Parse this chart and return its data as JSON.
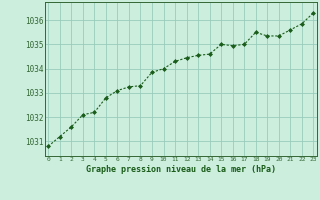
{
  "x": [
    0,
    1,
    2,
    3,
    4,
    5,
    6,
    7,
    8,
    9,
    10,
    11,
    12,
    13,
    14,
    15,
    16,
    17,
    18,
    19,
    20,
    21,
    22,
    23
  ],
  "y": [
    1030.8,
    1031.2,
    1031.6,
    1032.1,
    1032.2,
    1032.8,
    1033.1,
    1033.25,
    1033.3,
    1033.85,
    1034.0,
    1034.3,
    1034.45,
    1034.55,
    1034.6,
    1035.0,
    1034.95,
    1035.0,
    1035.5,
    1035.35,
    1035.35,
    1035.6,
    1035.85,
    1036.3
  ],
  "line_color": "#1a5c1a",
  "marker_color": "#1a5c1a",
  "bg_color": "#cceedd",
  "grid_color": "#99ccbb",
  "xlabel": "Graphe pression niveau de la mer (hPa)",
  "xlabel_color": "#1a5c1a",
  "ytick_labels": [
    1031,
    1032,
    1033,
    1034,
    1035,
    1036
  ],
  "ylim": [
    1030.4,
    1036.75
  ],
  "xlim": [
    -0.3,
    23.3
  ],
  "xtick_labels": [
    "0",
    "1",
    "2",
    "3",
    "4",
    "5",
    "6",
    "7",
    "8",
    "9",
    "10",
    "11",
    "12",
    "13",
    "14",
    "15",
    "16",
    "17",
    "18",
    "19",
    "20",
    "21",
    "22",
    "23"
  ],
  "axis_color": "#336633"
}
